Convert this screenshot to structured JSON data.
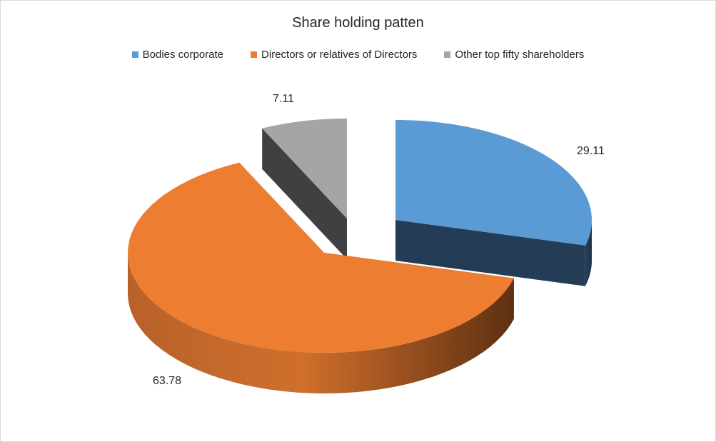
{
  "chart_data": {
    "type": "pie",
    "title": "Share holding patten",
    "series": [
      {
        "name": "Bodies corporate",
        "value": 29.11,
        "color": "#5b9bd5",
        "side_color": "#243c55"
      },
      {
        "name": "Directors or relatives of Directors",
        "value": 63.78,
        "color": "#ed7d31",
        "side_color": "#8a4a1c"
      },
      {
        "name": "Other top fifty shareholders",
        "value": 7.11,
        "color": "#a5a5a5",
        "side_color": "#404040"
      }
    ],
    "legend_position": "top",
    "exploded": true,
    "three_d": true,
    "data_labels_shown": true
  }
}
